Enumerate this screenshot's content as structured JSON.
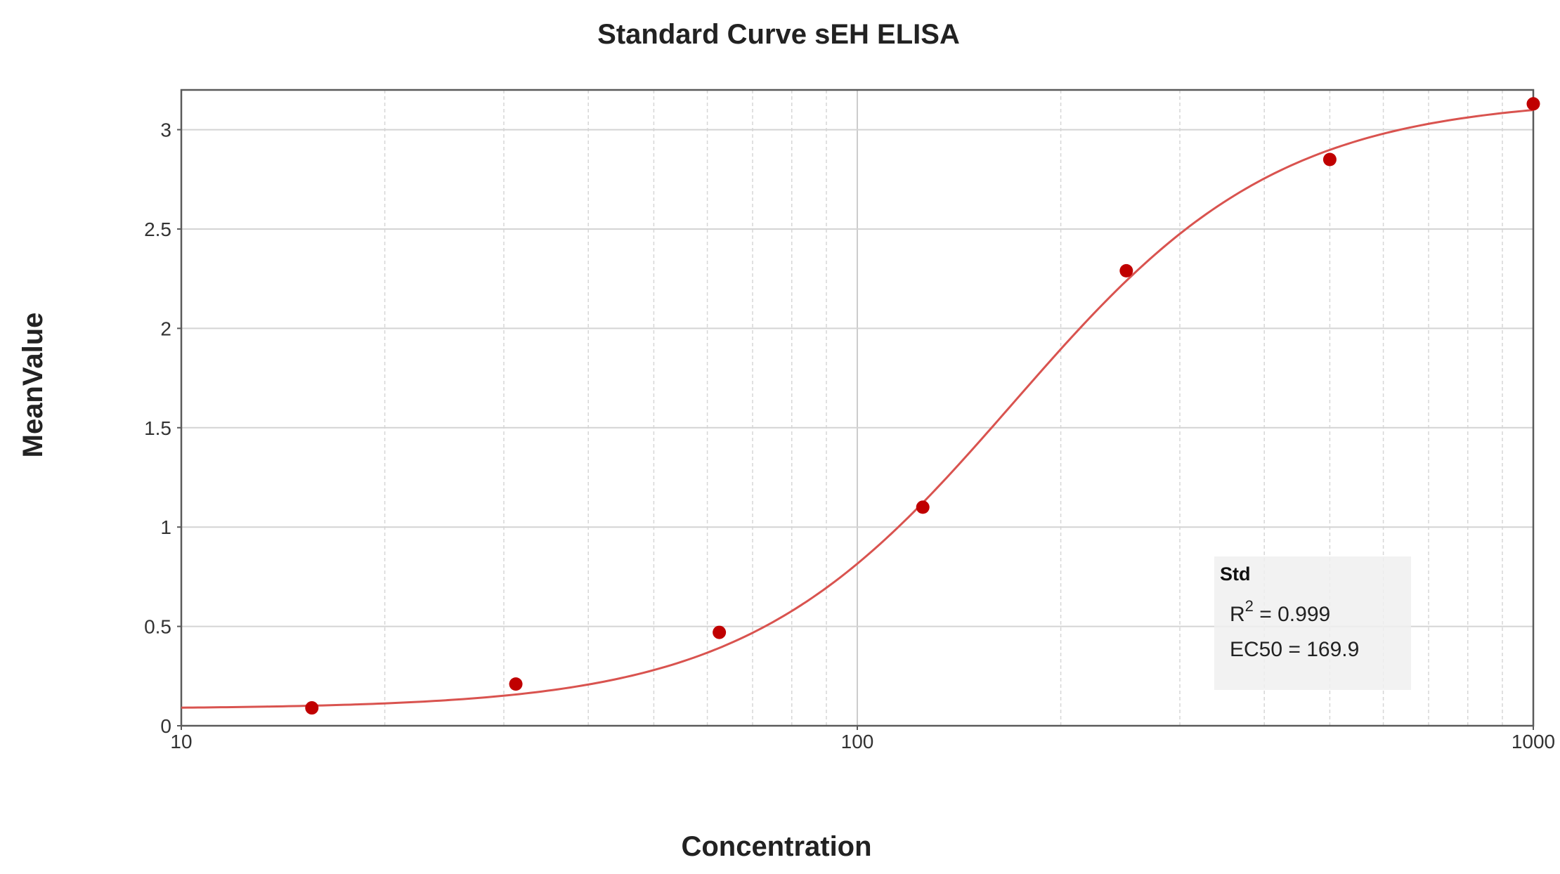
{
  "chart_data": {
    "type": "scatter",
    "title": "Standard Curve sEH ELISA",
    "xlabel": "Concentration",
    "ylabel": "MeanValue",
    "x_scale": "log",
    "xlim": [
      10,
      1000
    ],
    "ylim": [
      0,
      3.2
    ],
    "x_ticks": [
      "10",
      "100",
      "1000"
    ],
    "y_ticks": [
      "0",
      "0.5",
      "1",
      "1.5",
      "2",
      "2.5",
      "3"
    ],
    "grid": true,
    "series": [
      {
        "name": "Std",
        "color": "#c00000",
        "points": [
          {
            "x": 15.6,
            "y": 0.09
          },
          {
            "x": 31.25,
            "y": 0.21
          },
          {
            "x": 62.5,
            "y": 0.47
          },
          {
            "x": 125,
            "y": 1.1
          },
          {
            "x": 250,
            "y": 2.29
          },
          {
            "x": 500,
            "y": 2.85
          },
          {
            "x": 1000,
            "y": 3.13
          }
        ]
      }
    ],
    "fit": {
      "model": "4PL",
      "color": "#d9534f",
      "bottom": 0.085,
      "top": 3.16,
      "ec50": 169.9,
      "hill": 2.2
    },
    "legend": {
      "position": "bottom-right",
      "title": "Std",
      "r2_label": "R",
      "r2_exp": "2",
      "r2_value": " = 0.999",
      "ec50_text": "EC50 = 169.9"
    }
  }
}
